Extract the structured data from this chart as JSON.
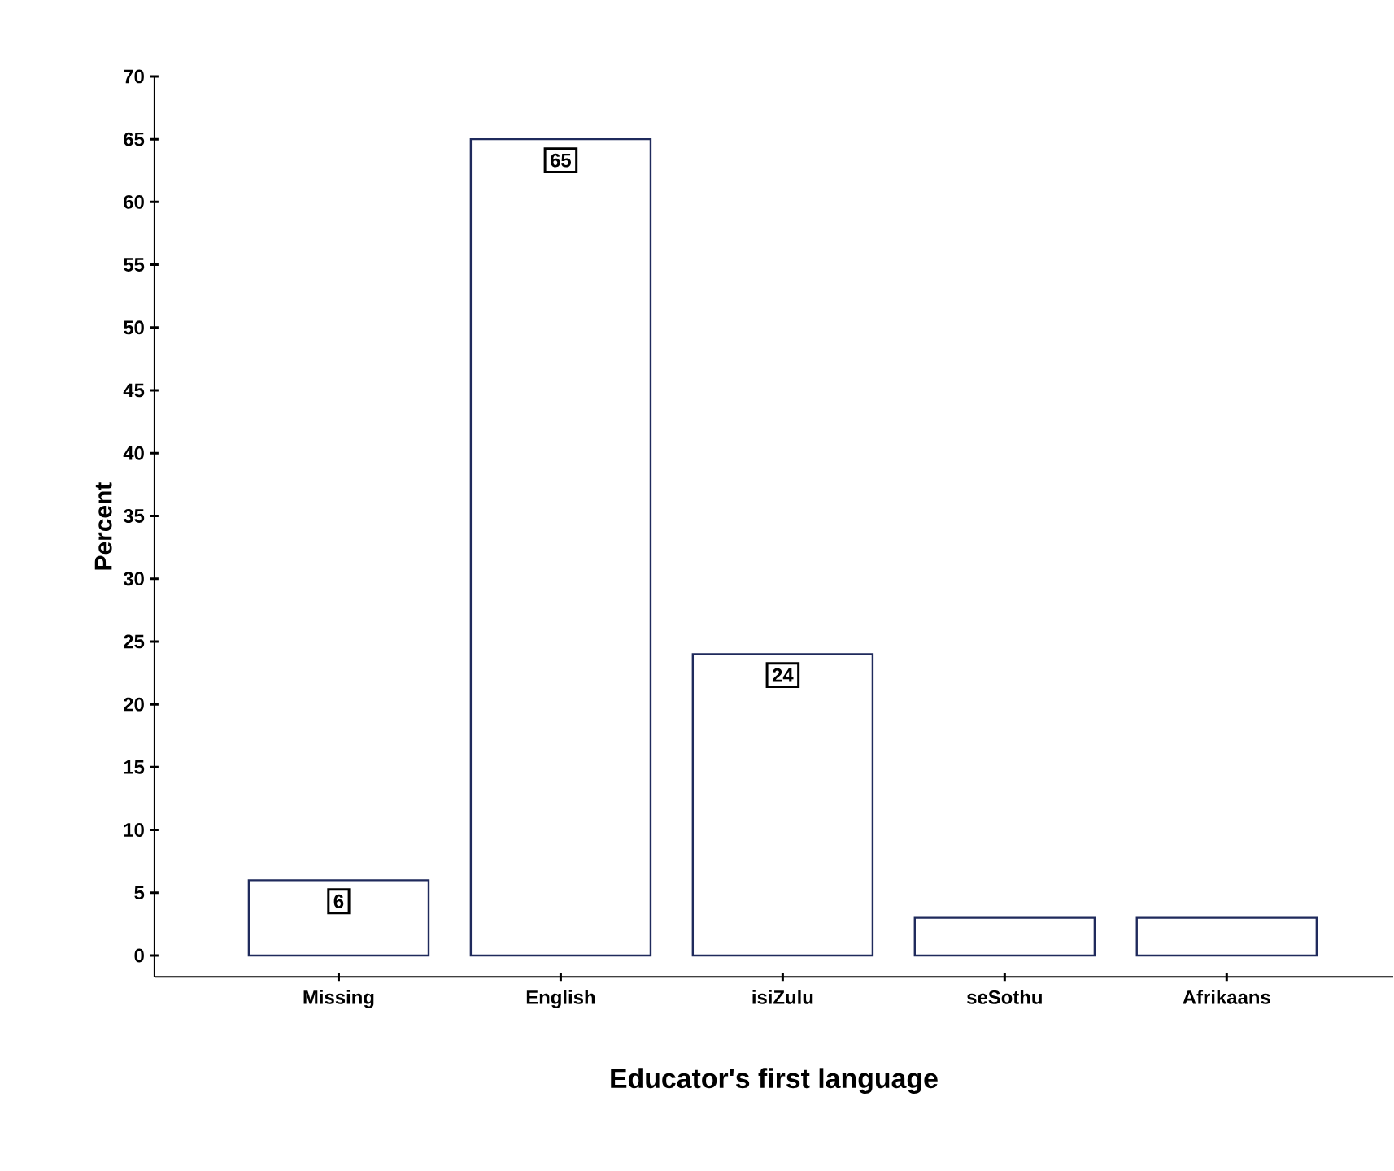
{
  "chart_data": {
    "type": "bar",
    "xlabel": "Educator's first language",
    "ylabel": "Percent",
    "categories": [
      "Missing",
      "English",
      "isiZulu",
      "seSothu",
      "Afrikaans"
    ],
    "values": [
      6,
      65,
      24,
      3,
      3
    ],
    "value_labels": [
      "6",
      "65",
      "24",
      null,
      null
    ],
    "color": "#1f2a5c",
    "ylim": [
      -1.7,
      70
    ],
    "yticks": [
      0,
      5,
      10,
      15,
      20,
      25,
      30,
      35,
      40,
      45,
      50,
      55,
      60,
      65,
      70
    ],
    "grid": false
  }
}
